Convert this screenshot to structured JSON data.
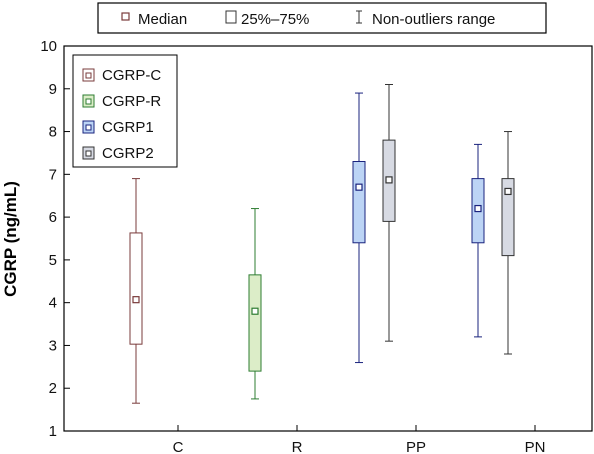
{
  "chart_data": {
    "type": "boxplot",
    "ylabel": "CGRP (ng/mL)",
    "ylim": [
      1,
      10
    ],
    "yticks": [
      1,
      2,
      3,
      4,
      5,
      6,
      7,
      8,
      9,
      10
    ],
    "categories": [
      "C",
      "R",
      "PP",
      "PN"
    ],
    "top_legend": [
      {
        "symbol": "median",
        "label": "Median"
      },
      {
        "symbol": "box",
        "label": "25%–75%"
      },
      {
        "symbol": "range",
        "label": "Non-outliers range"
      }
    ],
    "series": [
      {
        "name": "CGRP-C",
        "color": "#7a3b3b",
        "fill": "#ffffff",
        "category": "C",
        "min": 1.65,
        "q1": 3.03,
        "median": 4.07,
        "q3": 5.63,
        "max": 6.9
      },
      {
        "name": "CGRP-R",
        "color": "#2e7d32",
        "fill": "#dcedc8",
        "category": "R",
        "min": 1.75,
        "q1": 2.4,
        "median": 3.8,
        "q3": 4.65,
        "max": 6.2
      },
      {
        "name": "CGRP1",
        "color": "#1a237e",
        "fill": "#bcd4f5",
        "category": "PP",
        "min": 2.6,
        "q1": 5.4,
        "median": 6.7,
        "q3": 7.3,
        "max": 8.9
      },
      {
        "name": "CGRP2",
        "color": "#333333",
        "fill": "#d7dae3",
        "category": "PP",
        "min": 3.1,
        "q1": 5.9,
        "median": 6.87,
        "q3": 7.8,
        "max": 9.1
      },
      {
        "name": "CGRP1",
        "color": "#1a237e",
        "fill": "#bcd4f5",
        "category": "PN",
        "min": 3.2,
        "q1": 5.4,
        "median": 6.2,
        "q3": 6.9,
        "max": 7.7
      },
      {
        "name": "CGRP2",
        "color": "#333333",
        "fill": "#d7dae3",
        "category": "PN",
        "min": 2.8,
        "q1": 5.1,
        "median": 6.6,
        "q3": 6.9,
        "max": 8.0
      }
    ],
    "inner_legend": [
      {
        "label": "CGRP-C",
        "color": "#7a3b3b",
        "fill": "#ffffff"
      },
      {
        "label": "CGRP-R",
        "color": "#2e7d32",
        "fill": "#dcedc8"
      },
      {
        "label": "CGRP1",
        "color": "#1a237e",
        "fill": "#bcd4f5"
      },
      {
        "label": "CGRP2",
        "color": "#333333",
        "fill": "#d7dae3"
      }
    ],
    "grid": false,
    "legend_position": "top"
  }
}
